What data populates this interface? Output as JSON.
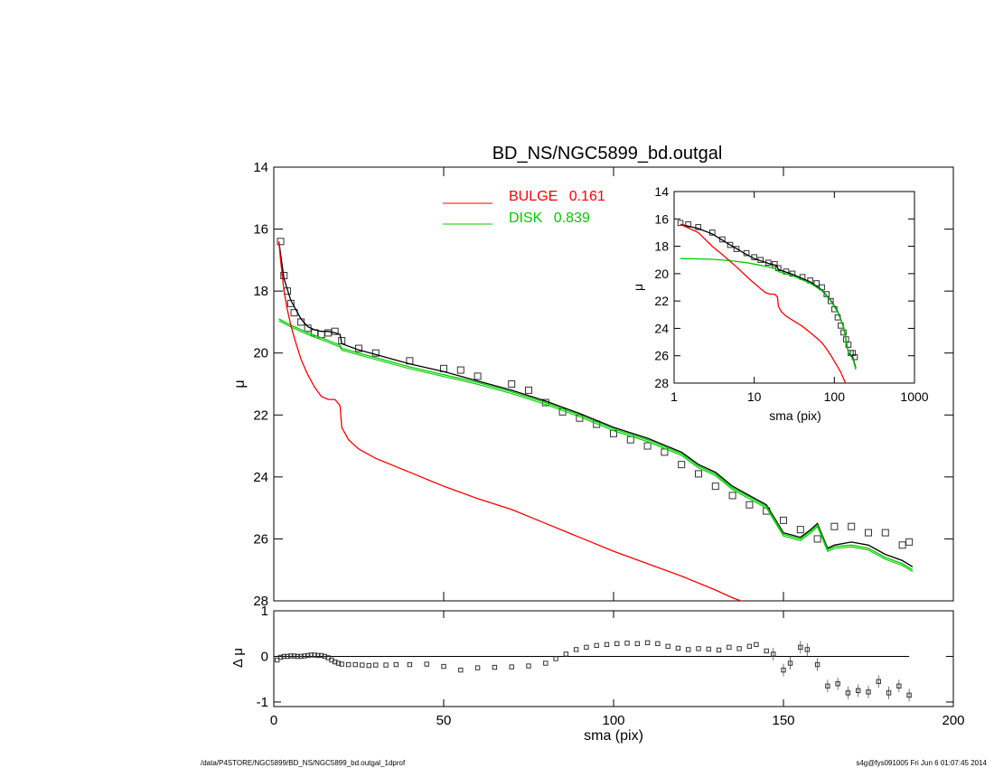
{
  "chart_data": [
    {
      "name": "main-profile",
      "type": "scatter",
      "title": "BD_NS/NGC5899_bd.outgal",
      "xlabel": "",
      "ylabel": "μ",
      "xlim": [
        0,
        200
      ],
      "ylim": [
        28,
        14
      ],
      "xticks": [
        0,
        50,
        100,
        150,
        200
      ],
      "yticks": [
        14,
        16,
        18,
        20,
        22,
        24,
        26,
        28
      ],
      "legend": {
        "placement": "top",
        "entries": [
          {
            "label": "BULGE",
            "value": "0.161",
            "color": "#ff0000"
          },
          {
            "label": "DISK",
            "value": "0.839",
            "color": "#00cc00"
          }
        ]
      },
      "series": [
        {
          "name": "data",
          "style": "square-markers",
          "color": "#000000",
          "x": [
            2,
            3,
            4,
            5,
            6,
            8,
            10,
            12,
            14,
            16,
            18,
            20,
            25,
            30,
            40,
            50,
            55,
            60,
            70,
            75,
            80,
            85,
            90,
            95,
            100,
            105,
            110,
            115,
            120,
            125,
            130,
            135,
            140,
            145,
            150,
            155,
            160,
            165,
            170,
            175,
            180,
            185,
            187
          ],
          "y": [
            16.4,
            17.5,
            18.0,
            18.4,
            18.7,
            19.0,
            19.2,
            19.35,
            19.4,
            19.35,
            19.3,
            19.6,
            19.85,
            20.0,
            20.25,
            20.5,
            20.55,
            20.75,
            21.0,
            21.2,
            21.6,
            21.9,
            22.1,
            22.3,
            22.6,
            22.8,
            23.0,
            23.2,
            23.6,
            23.9,
            24.3,
            24.6,
            24.9,
            25.1,
            25.4,
            25.7,
            26.0,
            25.6,
            25.6,
            25.8,
            25.8,
            26.2,
            26.1
          ]
        },
        {
          "name": "total",
          "style": "line",
          "color": "#000000",
          "x": [
            1.5,
            3,
            5,
            8,
            10,
            12,
            14,
            16,
            18,
            19.5,
            20,
            25,
            30,
            40,
            50,
            60,
            70,
            80,
            90,
            100,
            110,
            120,
            125,
            130,
            135,
            140,
            145,
            150,
            155,
            158,
            160,
            163,
            165,
            170,
            175,
            180,
            185,
            188
          ],
          "y": [
            16.4,
            17.6,
            18.3,
            18.9,
            19.15,
            19.25,
            19.3,
            19.3,
            19.35,
            19.4,
            19.7,
            19.9,
            20.05,
            20.35,
            20.6,
            20.9,
            21.2,
            21.55,
            21.95,
            22.4,
            22.75,
            23.2,
            23.6,
            23.85,
            24.3,
            24.6,
            24.9,
            25.8,
            25.95,
            25.7,
            25.5,
            26.3,
            26.2,
            26.1,
            26.2,
            26.5,
            26.7,
            26.9
          ]
        },
        {
          "name": "disk",
          "style": "line",
          "color": "#00cc00",
          "x": [
            1.5,
            5,
            10,
            15,
            19.5,
            20,
            25,
            30,
            40,
            50,
            60,
            70,
            80,
            90,
            100,
            110,
            120,
            125,
            130,
            135,
            140,
            145,
            150,
            155,
            158,
            160,
            163,
            165,
            170,
            175,
            180,
            185,
            188
          ],
          "y": [
            18.9,
            19.1,
            19.35,
            19.55,
            19.75,
            19.85,
            20.0,
            20.15,
            20.45,
            20.7,
            20.95,
            21.25,
            21.6,
            22.0,
            22.45,
            22.8,
            23.25,
            23.65,
            23.9,
            24.35,
            24.65,
            24.95,
            25.85,
            26.0,
            25.75,
            25.55,
            26.35,
            26.25,
            26.2,
            26.3,
            26.6,
            26.8,
            27.0
          ]
        },
        {
          "name": "bulge",
          "style": "line",
          "color": "#ff0000",
          "x": [
            1.5,
            2,
            3,
            4,
            5,
            6,
            8,
            10,
            12,
            14,
            16,
            18,
            19.5,
            20,
            22,
            25,
            30,
            40,
            50,
            60,
            70,
            80,
            90,
            100,
            110,
            120,
            130,
            135,
            140
          ],
          "y": [
            16.4,
            17.0,
            18.0,
            18.6,
            19.1,
            19.5,
            20.2,
            20.7,
            21.1,
            21.4,
            21.5,
            21.5,
            21.7,
            22.4,
            22.8,
            23.1,
            23.4,
            23.85,
            24.3,
            24.7,
            25.05,
            25.5,
            25.95,
            26.4,
            26.8,
            27.2,
            27.65,
            27.9,
            28.1
          ]
        }
      ]
    },
    {
      "name": "residuals",
      "type": "scatter",
      "title": "",
      "xlabel": "sma (pix)",
      "ylabel": "Δ μ",
      "xlim": [
        0,
        200
      ],
      "ylim": [
        -1.1,
        1.0
      ],
      "xticks": [
        0,
        50,
        100,
        150,
        200
      ],
      "yticks": [
        -1,
        0,
        1
      ],
      "series": [
        {
          "name": "residual",
          "style": "square-markers",
          "color": "#000000",
          "x": [
            1,
            2,
            3,
            4,
            5,
            6,
            7,
            8,
            9,
            10,
            11,
            12,
            13,
            14,
            15,
            16,
            17,
            18,
            19,
            20,
            22,
            24,
            26,
            28,
            30,
            33,
            36,
            40,
            45,
            50,
            55,
            60,
            65,
            70,
            75,
            80,
            83,
            86,
            89,
            92,
            95,
            98,
            101,
            104,
            107,
            110,
            113,
            116,
            119,
            122,
            125,
            128,
            131,
            134,
            137,
            140,
            142,
            145,
            147,
            150,
            152,
            155,
            157,
            160,
            163,
            166,
            169,
            172,
            175,
            178,
            181,
            184,
            187
          ],
          "y": [
            -0.08,
            -0.02,
            0.0,
            0.0,
            0.01,
            0.01,
            0.0,
            0.0,
            0.01,
            0.02,
            0.03,
            0.03,
            0.02,
            0.02,
            0.0,
            -0.03,
            -0.08,
            -0.12,
            -0.15,
            -0.17,
            -0.18,
            -0.18,
            -0.19,
            -0.2,
            -0.19,
            -0.19,
            -0.18,
            -0.18,
            -0.17,
            -0.22,
            -0.3,
            -0.25,
            -0.24,
            -0.23,
            -0.21,
            -0.15,
            -0.05,
            0.05,
            0.15,
            0.2,
            0.24,
            0.26,
            0.28,
            0.29,
            0.28,
            0.3,
            0.28,
            0.22,
            0.18,
            0.15,
            0.17,
            0.16,
            0.14,
            0.2,
            0.17,
            0.22,
            0.26,
            0.12,
            0.05,
            -0.3,
            -0.15,
            0.2,
            0.15,
            -0.18,
            -0.65,
            -0.6,
            -0.8,
            -0.75,
            -0.78,
            -0.55,
            -0.8,
            -0.65,
            -0.85
          ]
        }
      ]
    },
    {
      "name": "inset-log",
      "type": "scatter",
      "title": "",
      "xlabel": "sma (pix)",
      "ylabel": "μ",
      "xscale": "log",
      "xlim": [
        1,
        1000
      ],
      "ylim": [
        28,
        14
      ],
      "xticks": [
        1,
        10,
        100,
        1000
      ],
      "yticks": [
        14,
        16,
        18,
        20,
        22,
        24,
        26,
        28
      ],
      "series": [
        {
          "name": "data",
          "style": "square-markers",
          "color": "#000000",
          "x": [
            1.2,
            1.5,
            2,
            3,
            4,
            5,
            6,
            8,
            10,
            12,
            15,
            18,
            20,
            25,
            30,
            40,
            50,
            60,
            70,
            80,
            90,
            100,
            110,
            120,
            130,
            140,
            150,
            160,
            170,
            180
          ],
          "y": [
            16.3,
            16.4,
            16.6,
            17.0,
            17.5,
            17.9,
            18.2,
            18.5,
            18.8,
            19.0,
            19.2,
            19.3,
            19.6,
            19.85,
            20.0,
            20.25,
            20.5,
            20.7,
            21.0,
            21.5,
            22.0,
            22.6,
            23.2,
            23.8,
            24.3,
            24.8,
            25.2,
            25.8,
            25.8,
            26.1
          ]
        },
        {
          "name": "total",
          "style": "line",
          "color": "#000000",
          "x": [
            1.2,
            2,
            3,
            5,
            8,
            10,
            15,
            19,
            20,
            30,
            50,
            70,
            90,
            110,
            130,
            150,
            170,
            185
          ],
          "y": [
            16.4,
            16.7,
            17.1,
            17.9,
            18.6,
            18.9,
            19.25,
            19.4,
            19.7,
            20.05,
            20.6,
            21.2,
            21.95,
            22.75,
            23.85,
            25.8,
            26.1,
            26.9
          ]
        },
        {
          "name": "disk",
          "style": "line",
          "color": "#00cc00",
          "x": [
            1.2,
            2,
            3,
            5,
            8,
            10,
            15,
            19,
            20,
            30,
            50,
            70,
            90,
            110,
            130,
            150,
            170,
            185
          ],
          "y": [
            18.9,
            18.92,
            18.95,
            19.05,
            19.2,
            19.3,
            19.5,
            19.7,
            19.85,
            20.15,
            20.7,
            21.25,
            22.0,
            22.8,
            23.9,
            25.85,
            26.2,
            27.0
          ]
        },
        {
          "name": "bulge",
          "style": "line",
          "color": "#ff0000",
          "x": [
            1.2,
            2,
            3,
            4,
            5,
            6,
            8,
            10,
            12,
            14,
            16,
            18,
            19.5,
            20,
            22,
            25,
            30,
            40,
            50,
            60,
            70,
            80,
            90,
            100,
            110,
            120,
            130,
            140
          ],
          "y": [
            16.4,
            17.0,
            18.0,
            18.6,
            19.1,
            19.5,
            20.2,
            20.7,
            21.1,
            21.4,
            21.5,
            21.5,
            21.7,
            22.4,
            22.8,
            23.1,
            23.4,
            23.85,
            24.3,
            24.7,
            25.05,
            25.5,
            25.95,
            26.4,
            26.8,
            27.2,
            27.65,
            28.1
          ]
        }
      ]
    }
  ],
  "footer": {
    "left": "/data/P4STORE/NGC5899/BD_NS/NGC5899_bd.outgal_1dprof",
    "right": "s4g@fys091005  Fri Jun  6 01:07:45 2014"
  }
}
